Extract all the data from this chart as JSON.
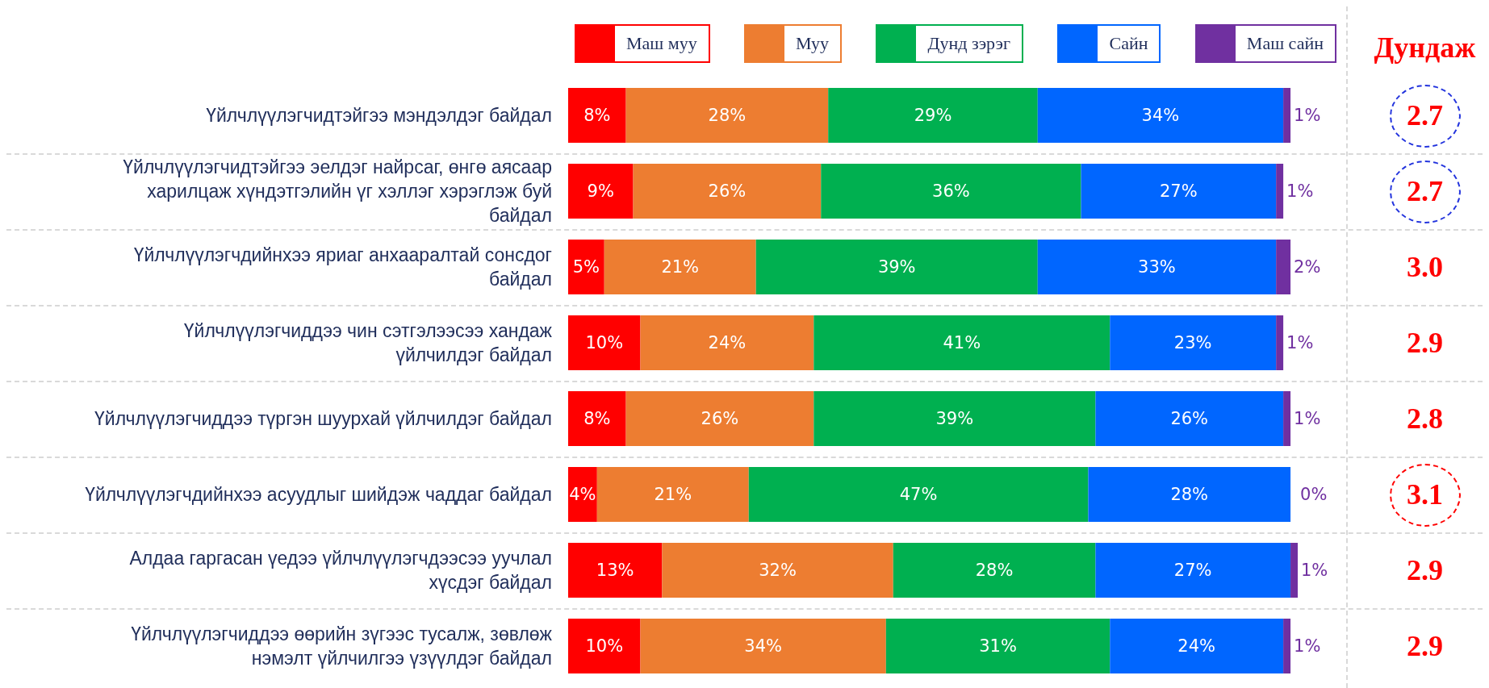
{
  "chart_data": {
    "type": "bar",
    "orientation": "horizontal",
    "stacked": true,
    "legend": "top",
    "categories": [
      "Үйлчлүүлэгчидтэйгээ мэндэлдэг байдал",
      "Үйлчлүүлэгчидтэйгээ эелдэг найрсаг, өнгө аясаар харилцаж хүндэтгэлийн үг хэллэг хэрэглэж буй байдал",
      "Үйлчлүүлэгчдийнхээ яриаг анхааралтай сонсдог байдал",
      "Үйлчлүүлэгчиддээ чин сэтгэлээсээ хандаж үйлчилдэг байдал",
      "Үйлчлүүлэгчиддээ түргэн шуурхай үйлчилдэг байдал",
      "Үйлчлүүлэгчдийнхээ асуудлыг шийдэж чаддаг байдал",
      "Алдаа гаргасан үедээ үйлчлүүлэгчдээсээ уучлал хүсдэг байдал",
      "Үйлчлүүлэгчиддээ өөрийн зүгээс тусалж, зөвлөж нэмэлт үйлчилгээ үзүүлдэг байдал"
    ],
    "series": [
      {
        "name": "Маш муу",
        "color": "#ff0000",
        "values": [
          8,
          9,
          5,
          10,
          8,
          4,
          13,
          10
        ],
        "value_labels": [
          "8%",
          "9%",
          "5%",
          "10%",
          "8%",
          "4%",
          "13%",
          "10%"
        ]
      },
      {
        "name": "Муу",
        "color": "#ed7d31",
        "values": [
          28,
          26,
          21,
          24,
          26,
          21,
          32,
          34
        ],
        "value_labels": [
          "28%",
          "26%",
          "21%",
          "24%",
          "26%",
          "21%",
          "32%",
          "34%"
        ]
      },
      {
        "name": "Дунд зэрэг",
        "color": "#00b050",
        "values": [
          29,
          36,
          39,
          41,
          39,
          47,
          28,
          31
        ],
        "value_labels": [
          "29%",
          "36%",
          "39%",
          "41%",
          "39%",
          "47%",
          "28%",
          "31%"
        ]
      },
      {
        "name": "Сайн",
        "color": "#0066ff",
        "values": [
          34,
          27,
          33,
          23,
          26,
          28,
          27,
          24
        ],
        "value_labels": [
          "34%",
          "27%",
          "33%",
          "23%",
          "26%",
          "28%",
          "27%",
          "24%"
        ]
      },
      {
        "name": "Маш сайн",
        "color": "#7030a0",
        "values": [
          1,
          1,
          2,
          1,
          1,
          0,
          1,
          1
        ],
        "value_labels": [
          "1%",
          "1%",
          "2%",
          "1%",
          "1%",
          "0%",
          "1%",
          "1%"
        ]
      }
    ],
    "annotations": [
      "Дундаж",
      "2.7",
      "2.7",
      "3.0",
      "2.9",
      "2.8",
      "3.1",
      "2.9",
      "2.9"
    ]
  }
}
